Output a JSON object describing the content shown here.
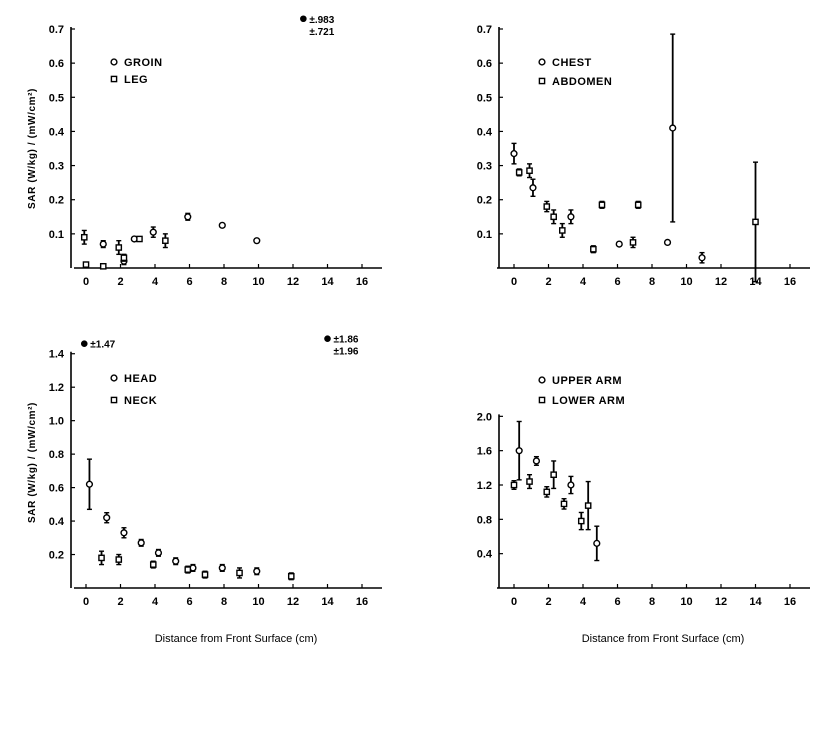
{
  "chart_data": [
    {
      "type": "scatter",
      "xlabel": "",
      "ylabel": "SAR (W/kg) / (mW/cm²)",
      "xlim": [
        0,
        16
      ],
      "ylim": [
        0,
        0.7
      ],
      "xticks": [
        "0",
        "2",
        "4",
        "6",
        "8",
        "10",
        "12",
        "14",
        "16"
      ],
      "yticks": [
        "0.1",
        "0.2",
        "0.3",
        "0.4",
        "0.5",
        "0.6",
        "0.7"
      ],
      "legend_position": "top-left",
      "series": [
        {
          "name": "GROIN",
          "marker": "circle",
          "points": [
            {
              "x": 1.0,
              "y": 0.07,
              "err": 0.01
            },
            {
              "x": 2.2,
              "y": 0.02,
              "err": 0.01
            },
            {
              "x": 2.8,
              "y": 0.085,
              "err": 0.0
            },
            {
              "x": 3.9,
              "y": 0.105,
              "err": 0.015
            },
            {
              "x": 5.9,
              "y": 0.15,
              "err": 0.01
            },
            {
              "x": 7.9,
              "y": 0.125,
              "err": 0.0
            },
            {
              "x": 9.9,
              "y": 0.08,
              "err": 0.0
            }
          ]
        },
        {
          "name": "LEG",
          "marker": "square",
          "points": [
            {
              "x": -0.1,
              "y": 0.09,
              "err": 0.02
            },
            {
              "x": 0.0,
              "y": 0.01,
              "err": 0.0
            },
            {
              "x": 1.0,
              "y": 0.005,
              "err": 0.0
            },
            {
              "x": 1.9,
              "y": 0.06,
              "err": 0.02
            },
            {
              "x": 2.2,
              "y": 0.03,
              "err": 0.01
            },
            {
              "x": 3.1,
              "y": 0.085,
              "err": 0.0
            },
            {
              "x": 4.6,
              "y": 0.08,
              "err": 0.02
            }
          ]
        }
      ],
      "annotation": {
        "x": 12.6,
        "y": 0.73,
        "lines": [
          "±.983",
          "±.721"
        ]
      }
    },
    {
      "type": "scatter",
      "xlabel": "",
      "ylabel": "",
      "xlim": [
        0,
        16
      ],
      "ylim": [
        0,
        0.7
      ],
      "xticks": [
        "0",
        "2",
        "4",
        "6",
        "8",
        "10",
        "12",
        "14",
        "16"
      ],
      "yticks": [
        "0.1",
        "0.2",
        "0.3",
        "0.4",
        "0.5",
        "0.6",
        "0.7"
      ],
      "legend_position": "top-left",
      "series": [
        {
          "name": "CHEST",
          "marker": "circle",
          "points": [
            {
              "x": 0.0,
              "y": 0.335,
              "err": 0.03
            },
            {
              "x": 1.1,
              "y": 0.235,
              "err": 0.025
            },
            {
              "x": 3.3,
              "y": 0.15,
              "err": 0.02
            },
            {
              "x": 6.1,
              "y": 0.07,
              "err": 0.0
            },
            {
              "x": 8.9,
              "y": 0.075,
              "err": 0.0
            },
            {
              "x": 9.2,
              "y": 0.41,
              "err": 0.275
            },
            {
              "x": 10.9,
              "y": 0.03,
              "err": 0.015
            }
          ]
        },
        {
          "name": "ABDOMEN",
          "marker": "square",
          "points": [
            {
              "x": 0.3,
              "y": 0.28,
              "err": 0.01
            },
            {
              "x": 0.9,
              "y": 0.285,
              "err": 0.02
            },
            {
              "x": 1.9,
              "y": 0.18,
              "err": 0.015
            },
            {
              "x": 2.3,
              "y": 0.15,
              "err": 0.02
            },
            {
              "x": 2.8,
              "y": 0.11,
              "err": 0.02
            },
            {
              "x": 4.6,
              "y": 0.055,
              "err": 0.01
            },
            {
              "x": 5.1,
              "y": 0.185,
              "err": 0.01
            },
            {
              "x": 6.9,
              "y": 0.075,
              "err": 0.015
            },
            {
              "x": 7.2,
              "y": 0.185,
              "err": 0.01
            },
            {
              "x": 14.0,
              "y": 0.135,
              "err": 0.175
            }
          ]
        }
      ]
    },
    {
      "type": "scatter",
      "xlabel": "Distance from Front Surface (cm)",
      "ylabel": "SAR (W/kg) / (mW/cm²)",
      "xlim": [
        0,
        16
      ],
      "ylim": [
        0,
        1.5
      ],
      "xticks": [
        "0",
        "2",
        "4",
        "6",
        "8",
        "10",
        "12",
        "14",
        "16"
      ],
      "yticks": [
        "0.2",
        "0.4",
        "0.6",
        "0.8",
        "1.0",
        "1.2",
        "1.4"
      ],
      "legend_position": "center-left",
      "series": [
        {
          "name": "HEAD",
          "marker": "circle",
          "points": [
            {
              "x": 0.2,
              "y": 0.62,
              "err": 0.15
            },
            {
              "x": 1.2,
              "y": 0.42,
              "err": 0.03
            },
            {
              "x": 2.2,
              "y": 0.33,
              "err": 0.03
            },
            {
              "x": 3.2,
              "y": 0.27,
              "err": 0.02
            },
            {
              "x": 4.2,
              "y": 0.21,
              "err": 0.02
            },
            {
              "x": 5.2,
              "y": 0.16,
              "err": 0.02
            },
            {
              "x": 6.2,
              "y": 0.12,
              "err": 0.02
            },
            {
              "x": 7.9,
              "y": 0.12,
              "err": 0.02
            },
            {
              "x": 9.9,
              "y": 0.1,
              "err": 0.02
            }
          ]
        },
        {
          "name": "NECK",
          "marker": "square",
          "points": [
            {
              "x": 0.9,
              "y": 0.18,
              "err": 0.04
            },
            {
              "x": 1.9,
              "y": 0.17,
              "err": 0.03
            },
            {
              "x": 3.9,
              "y": 0.14,
              "err": 0.02
            },
            {
              "x": 5.9,
              "y": 0.11,
              "err": 0.02
            },
            {
              "x": 6.9,
              "y": 0.08,
              "err": 0.02
            },
            {
              "x": 8.9,
              "y": 0.09,
              "err": 0.03
            },
            {
              "x": 11.9,
              "y": 0.07,
              "err": 0.02
            }
          ]
        }
      ],
      "annotations": [
        {
          "x": -0.1,
          "y": 1.46,
          "lines": [
            "±1.47"
          ]
        },
        {
          "x": 14.0,
          "y": 1.49,
          "lines": [
            "±1.86",
            "±1.96"
          ]
        }
      ]
    },
    {
      "type": "scatter",
      "xlabel": "Distance from Front Surface (cm)",
      "ylabel": "",
      "xlim": [
        0,
        16
      ],
      "ylim": [
        0,
        2.4
      ],
      "xticks": [
        "0",
        "2",
        "4",
        "6",
        "8",
        "10",
        "12",
        "14",
        "16"
      ],
      "yticks": [
        "0.4",
        "0.8",
        "1.2",
        "1.6",
        "2.0"
      ],
      "legend_position": "top-left",
      "series": [
        {
          "name": "UPPER ARM",
          "marker": "circle",
          "points": [
            {
              "x": 0.3,
              "y": 1.6,
              "err": 0.34
            },
            {
              "x": 1.3,
              "y": 1.48,
              "err": 0.05
            },
            {
              "x": 3.3,
              "y": 1.2,
              "err": 0.1
            },
            {
              "x": 4.8,
              "y": 0.52,
              "err": 0.2
            }
          ]
        },
        {
          "name": "LOWER ARM",
          "marker": "square",
          "points": [
            {
              "x": 0.0,
              "y": 1.2,
              "err": 0.05
            },
            {
              "x": 0.9,
              "y": 1.24,
              "err": 0.08
            },
            {
              "x": 1.9,
              "y": 1.12,
              "err": 0.06
            },
            {
              "x": 2.3,
              "y": 1.32,
              "err": 0.16
            },
            {
              "x": 2.9,
              "y": 0.98,
              "err": 0.06
            },
            {
              "x": 3.9,
              "y": 0.78,
              "err": 0.1
            },
            {
              "x": 4.3,
              "y": 0.96,
              "err": 0.28
            }
          ]
        }
      ]
    }
  ]
}
